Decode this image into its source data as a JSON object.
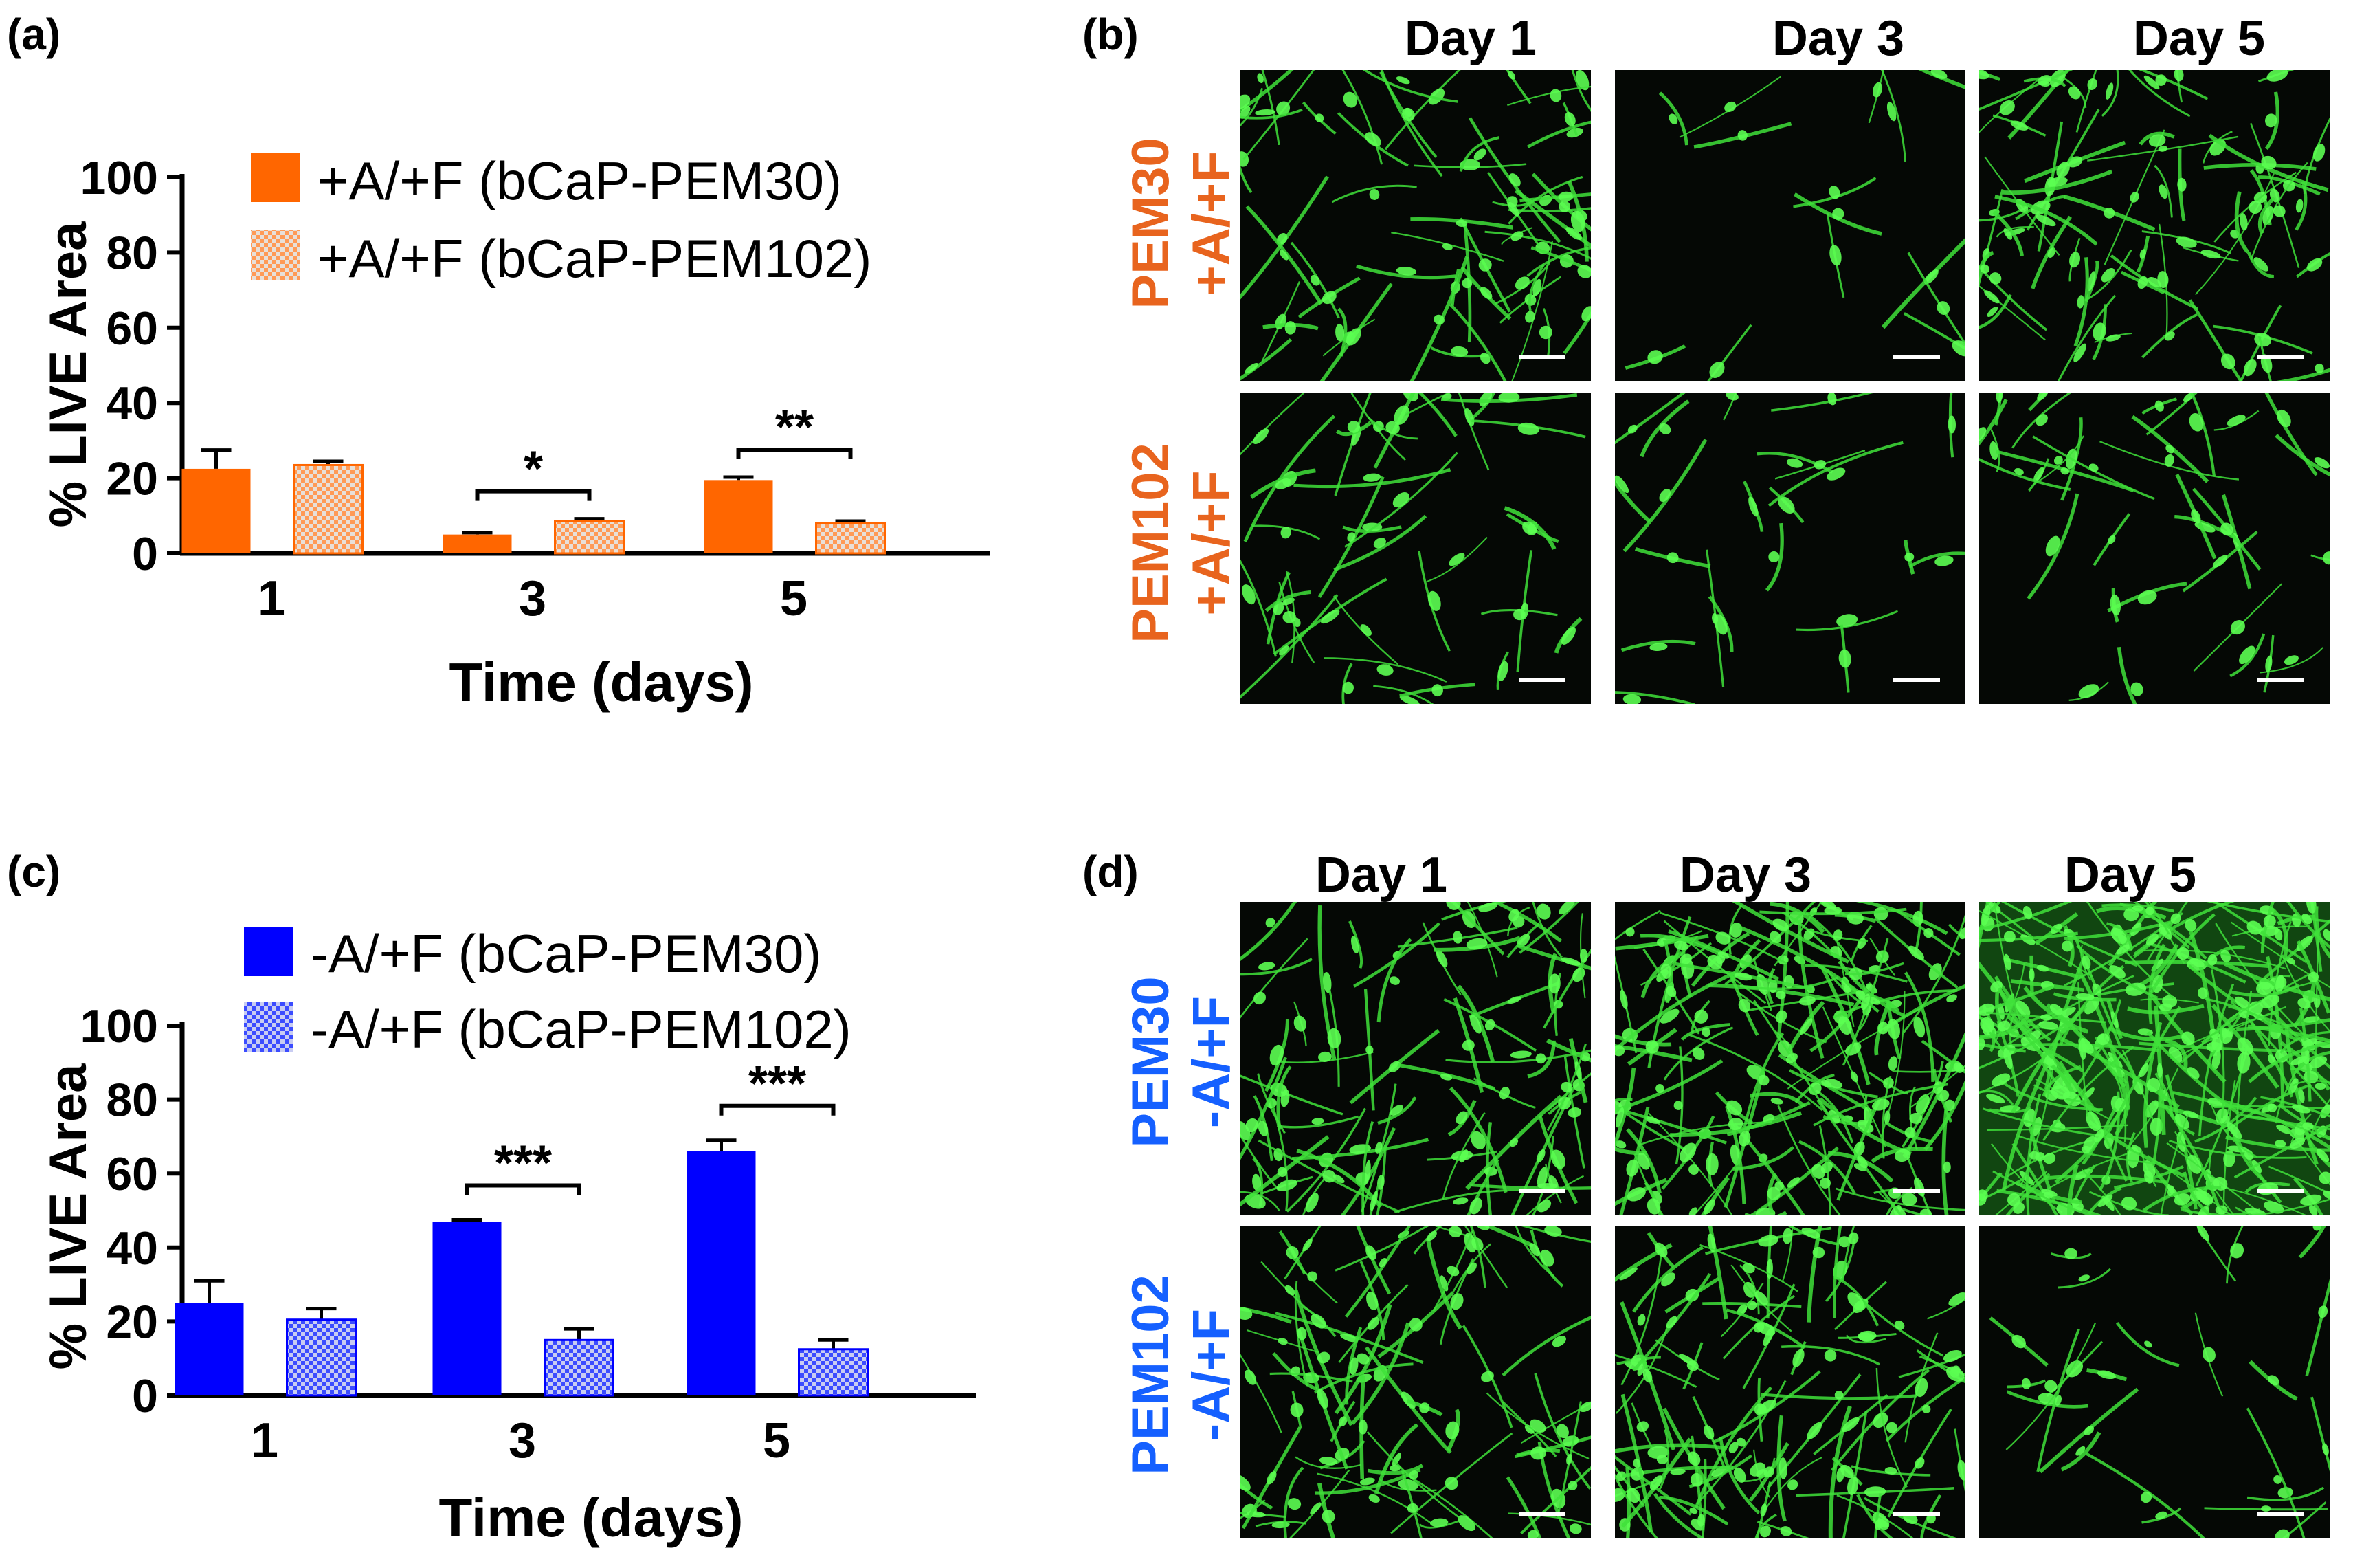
{
  "panels": {
    "a": "(a)",
    "b": "(b)",
    "c": "(c)",
    "d": "(d)"
  },
  "chart_data": [
    {
      "panel": "a",
      "type": "bar",
      "categories": [
        "1",
        "3",
        "5"
      ],
      "xlabel": "Time (days)",
      "ylabel": "% LIVE Area",
      "ylim": [
        0,
        100
      ],
      "yticks": [
        "0",
        "20",
        "40",
        "60",
        "80",
        "100"
      ],
      "legend_position": "top-right",
      "series": [
        {
          "name": "+A/+F (bCaP-PEM30)",
          "values": [
            22.5,
            5,
            19.5
          ],
          "errors": [
            5,
            0.5,
            0.8
          ],
          "color": "#ff6600",
          "pattern": "solid"
        },
        {
          "name": "+A/+F (bCaP-PEM102)",
          "values": [
            23.5,
            8.5,
            8
          ],
          "errors": [
            1,
            0.7,
            0.6
          ],
          "color": "#ff6600",
          "pattern": "checkered"
        }
      ],
      "significance": [
        {
          "category": "3",
          "label": "*"
        },
        {
          "category": "5",
          "label": "**"
        }
      ]
    },
    {
      "panel": "c",
      "type": "bar",
      "categories": [
        "1",
        "3",
        "5"
      ],
      "xlabel": "Time (days)",
      "ylabel": "% LIVE  Area",
      "ylim": [
        0,
        100
      ],
      "yticks": [
        "0",
        "20",
        "40",
        "60",
        "80",
        "100"
      ],
      "legend_position": "top-right",
      "series": [
        {
          "name": "-A/+F (bCaP-PEM30)",
          "values": [
            25,
            47,
            66
          ],
          "errors": [
            6,
            0.5,
            3
          ],
          "color": "#0000ff",
          "pattern": "solid"
        },
        {
          "name": "-A/+F (bCaP-PEM102)",
          "values": [
            20.5,
            15,
            12.5
          ],
          "errors": [
            3,
            3,
            2.5
          ],
          "color": "#0000ff",
          "pattern": "checkered"
        }
      ],
      "significance": [
        {
          "category": "3",
          "label": "***"
        },
        {
          "category": "5",
          "label": "***"
        }
      ]
    }
  ],
  "micrographs": {
    "b": {
      "columns": [
        "Day 1",
        "Day 3",
        "Day 5"
      ],
      "rows": [
        {
          "line1": "PEM30",
          "line2": "+A/+F"
        },
        {
          "line1": "PEM102",
          "line2": "+A/+F"
        }
      ],
      "label_color": "#e8641e"
    },
    "d": {
      "columns": [
        "Day 1",
        "Day 3",
        "Day 5"
      ],
      "rows": [
        {
          "line1": "PEM30",
          "line2": "-A/+F"
        },
        {
          "line1": "PEM102",
          "line2": "-A/+F"
        }
      ],
      "label_color": "#1560ff"
    }
  }
}
